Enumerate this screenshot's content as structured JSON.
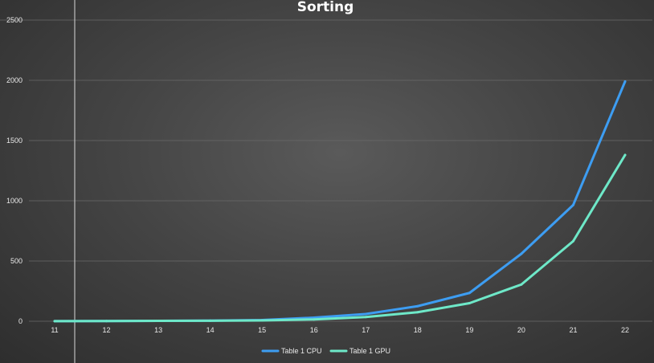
{
  "chart_data": {
    "type": "line",
    "title": "Sorting",
    "xlabel": "",
    "ylabel": "",
    "x": [
      11,
      12,
      13,
      14,
      15,
      16,
      17,
      18,
      19,
      20,
      21,
      22
    ],
    "ylim": [
      0,
      2500
    ],
    "yticks": [
      0,
      500,
      1000,
      1500,
      2000,
      2500
    ],
    "grid": true,
    "legend": "bottom-center",
    "series": [
      {
        "name": "Table 1 CPU",
        "color": "#3d9df2",
        "values": [
          1,
          2,
          3,
          5,
          10,
          30,
          60,
          125,
          235,
          560,
          965,
          1990
        ]
      },
      {
        "name": "Table 1 GPU",
        "color": "#6ee8c8",
        "values": [
          1,
          2,
          3,
          4,
          7,
          15,
          35,
          75,
          150,
          305,
          665,
          1380
        ]
      }
    ]
  }
}
